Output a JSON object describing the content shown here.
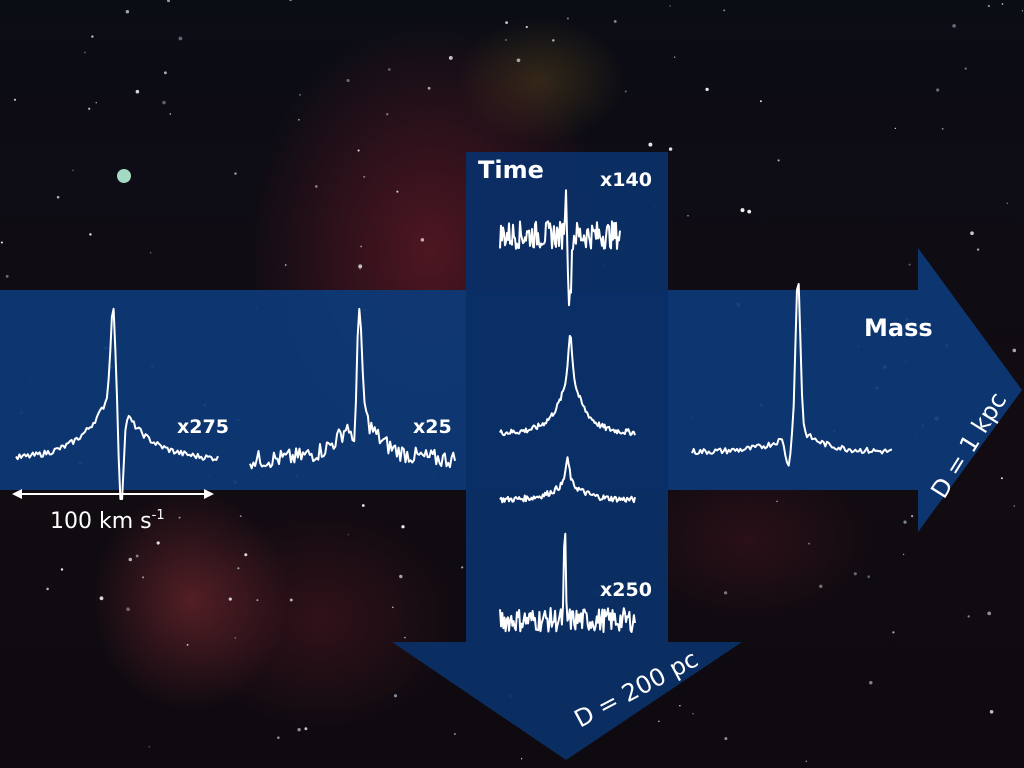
{
  "labels": {
    "time": "Time",
    "mass": "Mass",
    "d_vertical": "D = 200 pc",
    "d_horizontal": "D = 1 kpc",
    "scale_bar_main": "100 km s",
    "scale_bar_exp": "-1"
  },
  "spectra": [
    {
      "id": "left-1",
      "factor": "x275"
    },
    {
      "id": "left-2",
      "factor": "x25"
    },
    {
      "id": "time-1",
      "factor": "x140"
    },
    {
      "id": "time-2",
      "factor": ""
    },
    {
      "id": "time-3",
      "factor": ""
    },
    {
      "id": "time-4",
      "factor": "x250"
    },
    {
      "id": "right-1",
      "factor": ""
    }
  ],
  "colors": {
    "arrow": "#0d3a78",
    "arrow_panel": "#0a2f66",
    "line": "#ffffff"
  }
}
